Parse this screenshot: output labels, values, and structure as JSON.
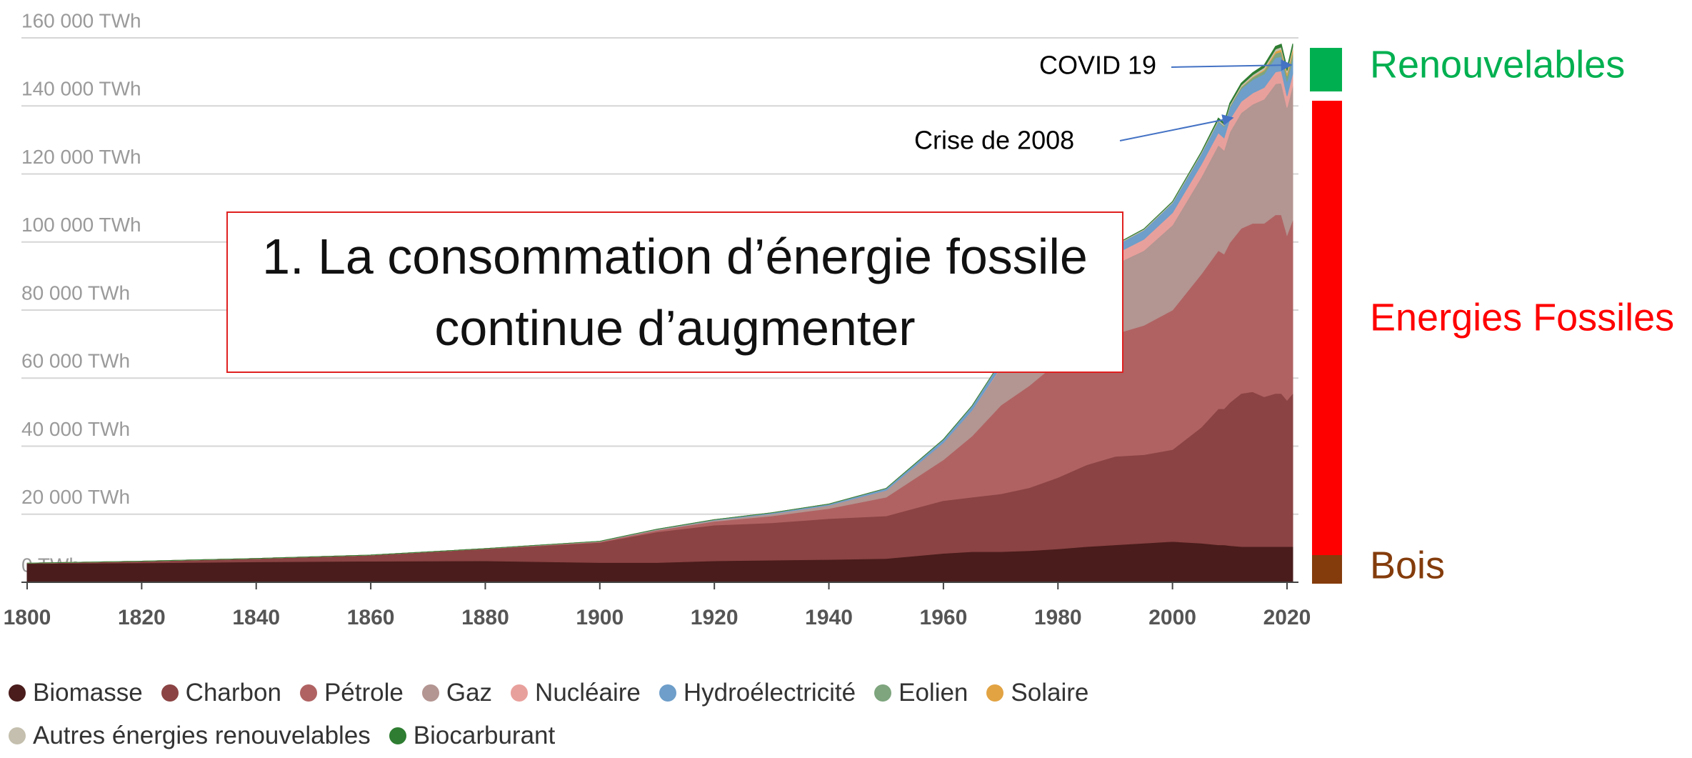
{
  "chart_data": {
    "type": "area",
    "stacked": true,
    "x": [
      1800,
      1820,
      1840,
      1860,
      1880,
      1900,
      1910,
      1920,
      1930,
      1940,
      1950,
      1960,
      1965,
      1970,
      1975,
      1980,
      1985,
      1990,
      1995,
      2000,
      2005,
      2008,
      2009,
      2010,
      2012,
      2014,
      2016,
      2018,
      2019,
      2020,
      2021
    ],
    "series": [
      {
        "name": "Biomasse",
        "color": "#4a1c1c",
        "values": [
          5500,
          5700,
          6000,
          6200,
          6300,
          5800,
          5800,
          6300,
          6500,
          6700,
          7000,
          8500,
          9000,
          9000,
          9300,
          9800,
          10500,
          11000,
          11500,
          12000,
          11500,
          11000,
          11000,
          10800,
          10500,
          10500,
          10500,
          10500,
          10500,
          10500,
          10500
        ]
      },
      {
        "name": "Charbon",
        "color": "#8b4343",
        "values": [
          100,
          500,
          1000,
          1800,
          3500,
          5900,
          9000,
          10500,
          11000,
          12000,
          12500,
          15500,
          16000,
          17000,
          18500,
          21000,
          24000,
          26000,
          26000,
          27000,
          34000,
          40000,
          40000,
          42000,
          45000,
          45500,
          44000,
          45000,
          45000,
          43000,
          45000
        ]
      },
      {
        "name": "Pétrole",
        "color": "#b06262",
        "values": [
          0,
          0,
          0,
          0,
          100,
          200,
          500,
          1100,
          2000,
          3000,
          5500,
          12000,
          18000,
          26000,
          30000,
          34000,
          33000,
          36000,
          38000,
          41000,
          45000,
          46500,
          45500,
          47000,
          48500,
          49500,
          51000,
          52500,
          52500,
          48500,
          51000
        ]
      },
      {
        "name": "Gaz",
        "color": "#b39591",
        "values": [
          0,
          0,
          0,
          0,
          0,
          100,
          200,
          300,
          600,
          900,
          2000,
          5000,
          7500,
          11000,
          13000,
          15500,
          17500,
          20500,
          22000,
          25000,
          28500,
          31000,
          30500,
          32500,
          34000,
          35000,
          36500,
          38500,
          38700,
          37500,
          39500
        ]
      },
      {
        "name": "Nucléaire",
        "color": "#e8a09c",
        "values": [
          0,
          0,
          0,
          0,
          0,
          0,
          0,
          0,
          0,
          0,
          0,
          0,
          50,
          200,
          700,
          1300,
          2500,
          3000,
          3300,
          3600,
          3700,
          3600,
          3600,
          3700,
          3300,
          3300,
          3400,
          3500,
          3600,
          3400,
          3500
        ]
      },
      {
        "name": "Hydroélectricité",
        "color": "#6e9ec9",
        "values": [
          0,
          0,
          0,
          0,
          0,
          50,
          100,
          200,
          300,
          400,
          600,
          1000,
          1300,
          1600,
          1900,
          2100,
          2300,
          2500,
          2700,
          2900,
          3100,
          3300,
          3300,
          3500,
          3700,
          3900,
          4000,
          4200,
          4200,
          4300,
          4300
        ]
      },
      {
        "name": "Eolien",
        "color": "#7ea57e",
        "values": [
          0,
          0,
          0,
          0,
          0,
          0,
          0,
          0,
          0,
          0,
          0,
          0,
          0,
          0,
          0,
          0,
          0,
          5,
          10,
          30,
          100,
          220,
          270,
          340,
          520,
          700,
          950,
          1270,
          1420,
          1590,
          1860
        ]
      },
      {
        "name": "Solaire",
        "color": "#e2a343",
        "values": [
          0,
          0,
          0,
          0,
          0,
          0,
          0,
          0,
          0,
          0,
          0,
          0,
          0,
          0,
          0,
          0,
          0,
          0,
          0,
          0,
          2,
          12,
          20,
          32,
          100,
          190,
          330,
          580,
          700,
          850,
          1030
        ]
      },
      {
        "name": "Autres énergies renouvelables",
        "color": "#c4bfae",
        "values": [
          0,
          0,
          0,
          0,
          0,
          0,
          0,
          0,
          0,
          0,
          0,
          0,
          30,
          60,
          80,
          120,
          170,
          230,
          270,
          300,
          360,
          410,
          430,
          460,
          510,
          560,
          610,
          670,
          700,
          730,
          760
        ]
      },
      {
        "name": "Biocarburant",
        "color": "#2e7d32",
        "values": [
          0,
          0,
          0,
          0,
          0,
          0,
          0,
          0,
          0,
          0,
          0,
          0,
          0,
          0,
          0,
          0,
          30,
          60,
          60,
          70,
          150,
          400,
          450,
          500,
          550,
          650,
          720,
          800,
          850,
          800,
          850
        ]
      }
    ],
    "xlim": [
      1800,
      2021
    ],
    "xticks": [
      1800,
      1820,
      1840,
      1860,
      1880,
      1900,
      1920,
      1940,
      1960,
      1980,
      2000,
      2020
    ],
    "ylim": [
      0,
      160000
    ],
    "yticks": [
      {
        "value": 0,
        "label": "0 TWh"
      },
      {
        "value": 20000,
        "label": "20 000 TWh"
      },
      {
        "value": 40000,
        "label": "40 000 TWh"
      },
      {
        "value": 60000,
        "label": "60 000 TWh"
      },
      {
        "value": 80000,
        "label": "80 000 TWh"
      },
      {
        "value": 100000,
        "label": "100 000 TWh"
      },
      {
        "value": 120000,
        "label": "120 000 TWh"
      },
      {
        "value": 140000,
        "label": "140 000 TWh"
      },
      {
        "value": 160000,
        "label": "160 000 TWh"
      }
    ],
    "grid": true,
    "headline": "1. La consommation d’énergie fossile continue d’augmenter",
    "annotations": [
      {
        "text": "COVID 19"
      },
      {
        "text": "Crise de 2008"
      }
    ],
    "groups": [
      {
        "label": "Renouvelables",
        "color": "#00b050"
      },
      {
        "label": "Energies Fossiles",
        "color": "#ff0000"
      },
      {
        "label": "Bois",
        "color": "#843c0c"
      }
    ]
  }
}
